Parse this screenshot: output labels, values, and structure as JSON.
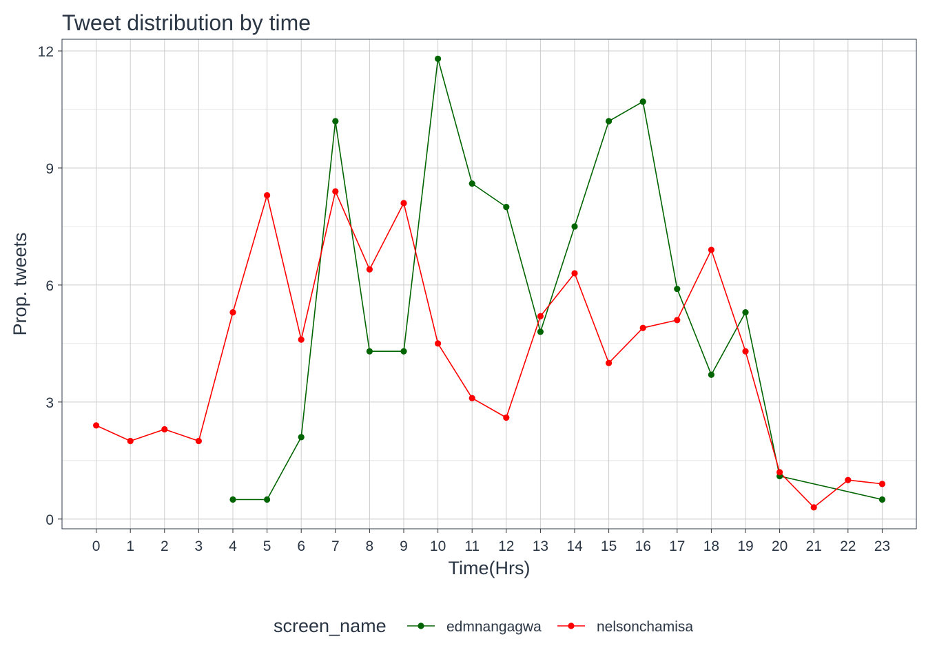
{
  "chart_data": {
    "type": "line",
    "title": "Tweet distribution by time",
    "xlabel": "Time(Hrs)",
    "ylabel": "Prop. tweets",
    "x_ticks": [
      "0",
      "1",
      "2",
      "3",
      "4",
      "5",
      "6",
      "7",
      "8",
      "9",
      "10",
      "11",
      "12",
      "13",
      "14",
      "15",
      "16",
      "17",
      "18",
      "19",
      "20",
      "21",
      "22",
      "23"
    ],
    "y_ticks": [
      "0",
      "3",
      "6",
      "9",
      "12"
    ],
    "ylim": [
      -0.25,
      12.3
    ],
    "xlim": [
      -1,
      24
    ],
    "grid": true,
    "legend_placement": "bottom",
    "legend_title": "screen_name",
    "series": [
      {
        "name": "edmnangagwa",
        "color": "#006400",
        "x": [
          4,
          5,
          6,
          7,
          8,
          9,
          10,
          11,
          12,
          13,
          14,
          15,
          16,
          17,
          18,
          19,
          20,
          23
        ],
        "y": [
          0.5,
          0.5,
          2.1,
          10.2,
          4.3,
          4.3,
          11.8,
          8.6,
          8.0,
          4.8,
          7.5,
          10.2,
          10.7,
          5.9,
          3.7,
          5.3,
          1.1,
          0.5
        ]
      },
      {
        "name": "nelsonchamisa",
        "color": "#ff0000",
        "x": [
          0,
          1,
          2,
          3,
          4,
          5,
          6,
          7,
          8,
          9,
          10,
          11,
          12,
          13,
          14,
          15,
          16,
          17,
          18,
          19,
          20,
          21,
          22,
          23
        ],
        "y": [
          2.4,
          2.0,
          2.3,
          2.0,
          5.3,
          8.3,
          4.6,
          8.4,
          6.4,
          8.1,
          4.5,
          3.1,
          2.6,
          5.2,
          6.3,
          4.0,
          4.9,
          5.1,
          6.9,
          4.3,
          1.2,
          0.3,
          1.0,
          0.9
        ]
      }
    ]
  }
}
